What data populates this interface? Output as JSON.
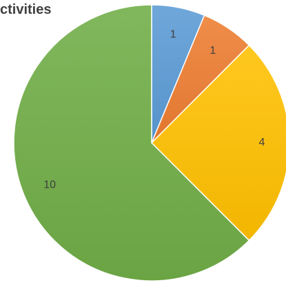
{
  "chart_data": {
    "type": "pie",
    "title": "ctivities",
    "categories": [
      "",
      "",
      "",
      ""
    ],
    "values": [
      1,
      1,
      4,
      10
    ],
    "labels": [
      "1",
      "1",
      "4",
      "10"
    ],
    "colors": [
      "#5B9BD5",
      "#ED7D31",
      "#FFC000",
      "#70AD47"
    ],
    "start": "12 o'clock",
    "direction": "clockwise",
    "legend": "none"
  }
}
